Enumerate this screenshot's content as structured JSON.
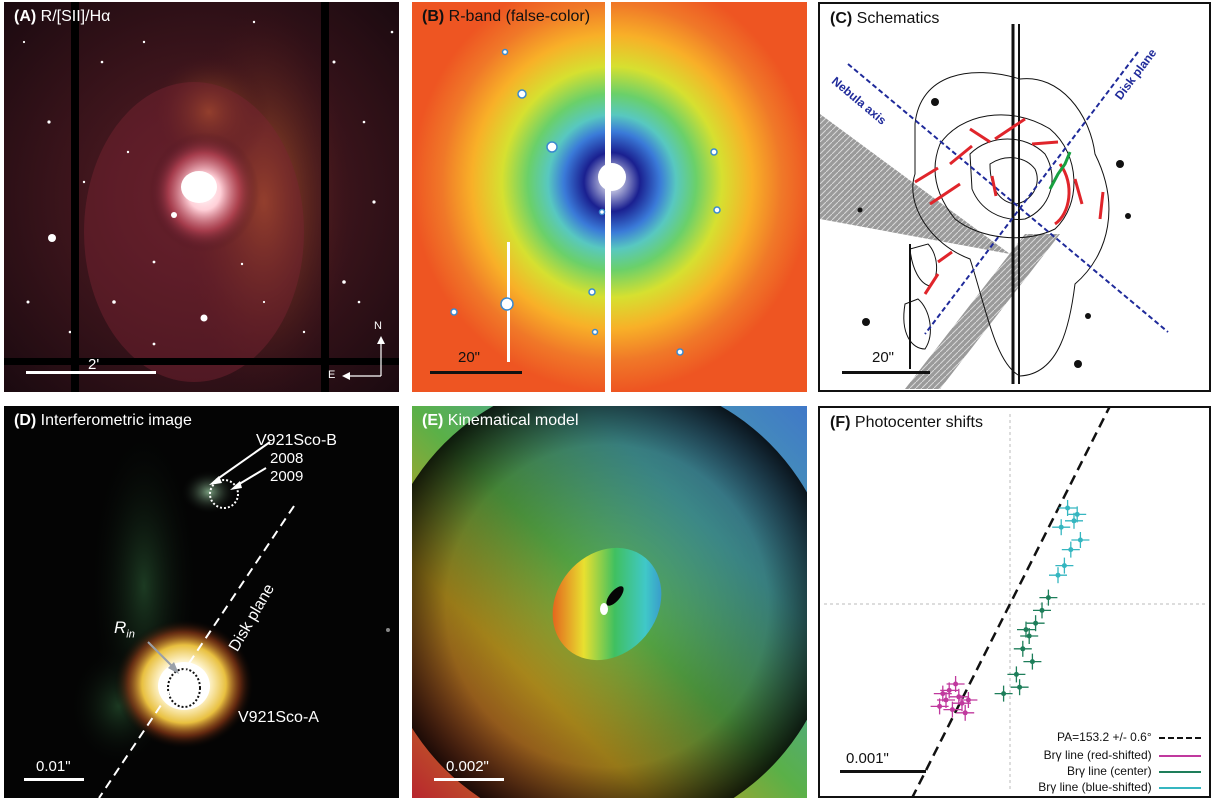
{
  "panels": {
    "a": {
      "letter": "(A)",
      "title": "R/[SII]/Hα",
      "scale": "2'",
      "north": "N",
      "east": "E"
    },
    "b": {
      "letter": "(B)",
      "title": "R-band (false-color)",
      "scale": "20\""
    },
    "c": {
      "letter": "(C)",
      "title": "Schematics",
      "nebula_axis": "Nebula axis",
      "disk_plane": "Disk plane",
      "scale": "20\""
    },
    "d": {
      "letter": "(D)",
      "title": "Interferometric image",
      "companion": "V921Sco-B",
      "year1": "2008",
      "year2": "2009",
      "rin": "R",
      "rin_sub": "in",
      "disk_plane": "Disk plane",
      "primary": "V921Sco-A",
      "scale": "0.01\""
    },
    "e": {
      "letter": "(E)",
      "title": "Kinematical model",
      "scale": "0.002\""
    },
    "f": {
      "letter": "(F)",
      "title": "Photocenter shifts",
      "scale": "0.001\""
    }
  },
  "colors": {
    "red_shifted": "#c0399e",
    "center": "#1e7e5a",
    "blue_shifted": "#35b6c0",
    "blue_points": "#2b3e9a",
    "red_points": "#b52233",
    "orange_points": "#f0a020",
    "fit_line": "#111111",
    "schematic_lines": "#1f2a9a",
    "schematic_red": "#e0252b",
    "schematic_green": "#18a040"
  },
  "chart_data": {
    "type": "scatter",
    "title": "Photocenter shifts",
    "xlabel": "",
    "ylabel": "",
    "grid": false,
    "legend_position": "bottom-right",
    "fit": {
      "label": "PA=153.2 +/- 0.6°",
      "position_angle_deg": 153.2,
      "uncertainty_deg": 0.6
    },
    "series": [
      {
        "name": "Brγ line (red-shifted)",
        "color": "#c0399e",
        "points": [
          [
            -0.0022,
            -0.0032
          ],
          [
            -0.002,
            -0.003
          ],
          [
            -0.0018,
            -0.0033
          ],
          [
            -0.0016,
            -0.0029
          ],
          [
            -0.0015,
            -0.0031
          ],
          [
            -0.0019,
            -0.0027
          ],
          [
            -0.0017,
            -0.0025
          ],
          [
            -0.0021,
            -0.0028
          ],
          [
            -0.0014,
            -0.0034
          ],
          [
            -0.0013,
            -0.003
          ]
        ]
      },
      {
        "name": "Brγ line (center)",
        "color": "#1e7e5a",
        "points": [
          [
            0.001,
            -0.0002
          ],
          [
            0.0008,
            -0.0006
          ],
          [
            0.0006,
            -0.001
          ],
          [
            0.0004,
            -0.0014
          ],
          [
            0.0007,
            -0.0018
          ],
          [
            0.0002,
            -0.0022
          ],
          [
            0.0003,
            -0.0026
          ],
          [
            -0.0002,
            -0.0028
          ],
          [
            0.0012,
            0.0002
          ],
          [
            0.0005,
            -0.0008
          ]
        ]
      },
      {
        "name": "Brγ line (blue-shifted)",
        "color": "#35b6c0",
        "points": [
          [
            0.0018,
            0.003
          ],
          [
            0.002,
            0.0026
          ],
          [
            0.0016,
            0.0024
          ],
          [
            0.0022,
            0.002
          ],
          [
            0.0019,
            0.0017
          ],
          [
            0.0017,
            0.0012
          ],
          [
            0.0015,
            0.0009
          ],
          [
            0.0021,
            0.0028
          ]
        ]
      }
    ]
  }
}
